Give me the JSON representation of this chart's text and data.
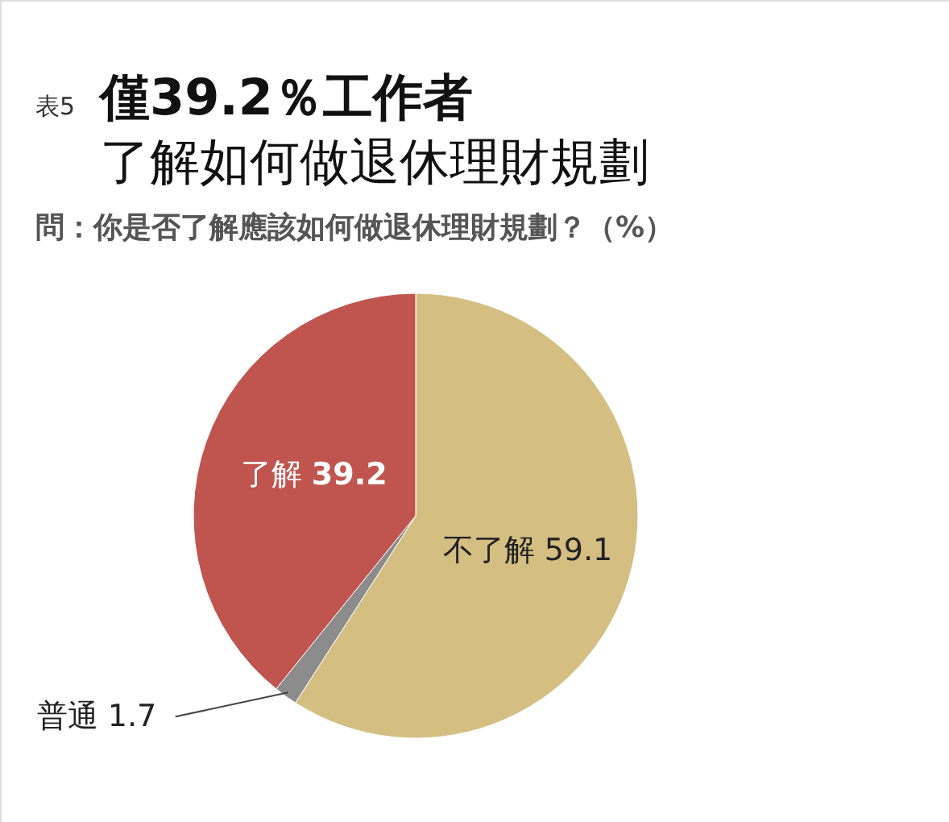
{
  "chart_data": {
    "type": "pie",
    "title": "僅39.2％工作者了解如何做退休理財規劃",
    "subtitle": "問：你是否了解應該如何做退休理財規劃？（%）",
    "annotations": [
      "表5"
    ],
    "categories": [
      "不了解",
      "普通",
      "了解"
    ],
    "values": [
      59.1,
      1.7,
      39.2
    ],
    "colors": [
      "#d4be82",
      "#8c8c8c",
      "#c0554f"
    ],
    "data_labels": true
  }
}
